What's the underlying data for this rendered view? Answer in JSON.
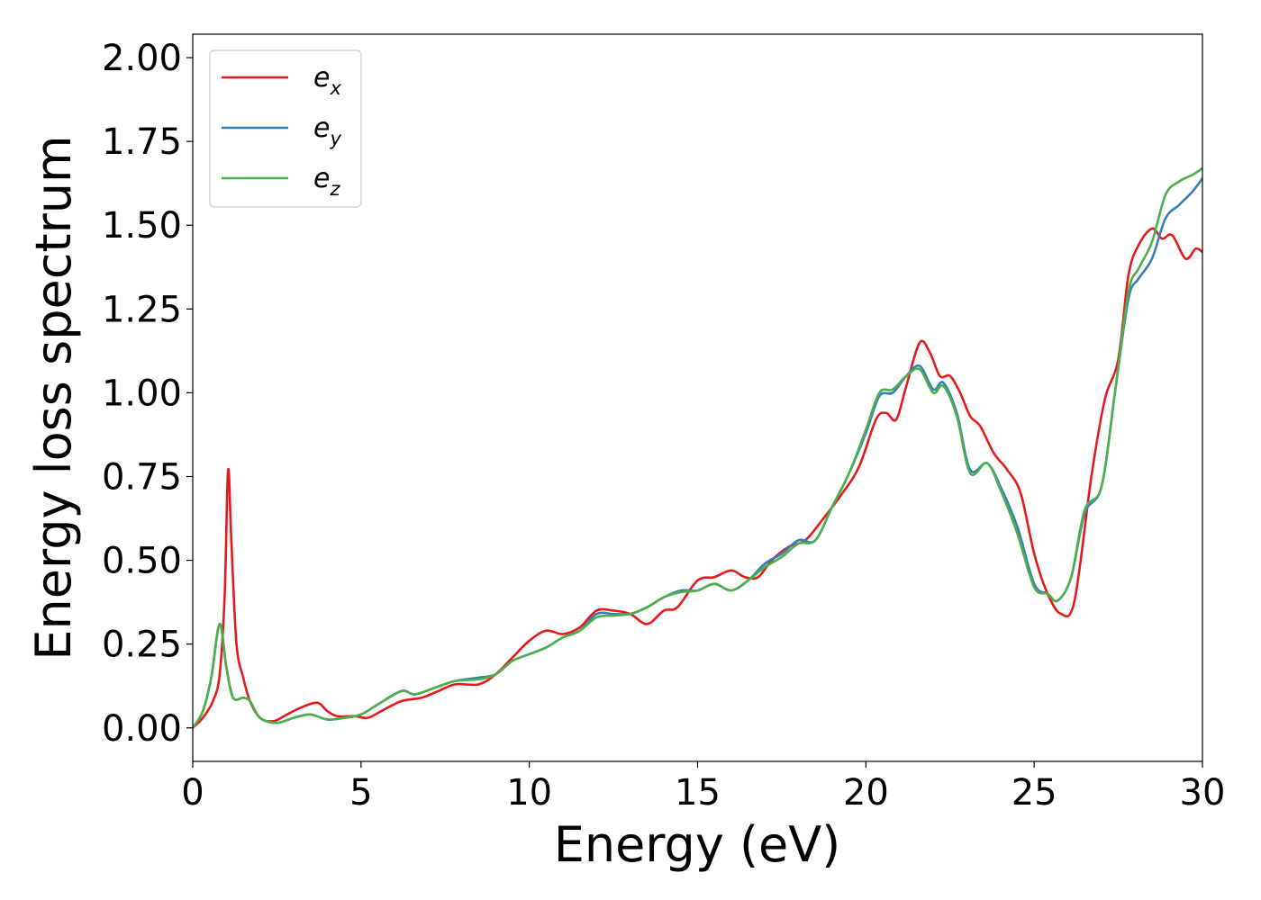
{
  "chart_data": {
    "type": "line",
    "title": "",
    "xlabel": "Energy (eV)",
    "ylabel": "Energy loss spectrum",
    "xlim": [
      0,
      30
    ],
    "ylim": [
      -0.1,
      2.07
    ],
    "xticks": [
      0,
      5,
      10,
      15,
      20,
      25,
      30
    ],
    "xtick_labels": [
      "0",
      "5",
      "10",
      "15",
      "20",
      "25",
      "30"
    ],
    "yticks": [
      0,
      0.25,
      0.5,
      0.75,
      1.0,
      1.25,
      1.5,
      1.75,
      2.0
    ],
    "ytick_labels": [
      "0.00",
      "0.25",
      "0.50",
      "0.75",
      "1.00",
      "1.25",
      "1.50",
      "1.75",
      "2.00"
    ],
    "grid": false,
    "legend_position": "top-left",
    "series": [
      {
        "name": "e_x",
        "legend_base": "e",
        "legend_sub": "x",
        "color": "#e41a1c",
        "points": [
          [
            0,
            0
          ],
          [
            0.3,
            0.03
          ],
          [
            0.6,
            0.08
          ],
          [
            0.8,
            0.16
          ],
          [
            0.95,
            0.4
          ],
          [
            1.05,
            0.77
          ],
          [
            1.15,
            0.55
          ],
          [
            1.3,
            0.25
          ],
          [
            1.5,
            0.15
          ],
          [
            1.7,
            0.08
          ],
          [
            2.0,
            0.03
          ],
          [
            2.4,
            0.02
          ],
          [
            2.8,
            0.04
          ],
          [
            3.2,
            0.06
          ],
          [
            3.7,
            0.075
          ],
          [
            4.0,
            0.05
          ],
          [
            4.3,
            0.035
          ],
          [
            4.8,
            0.035
          ],
          [
            5.2,
            0.03
          ],
          [
            5.6,
            0.05
          ],
          [
            6.2,
            0.08
          ],
          [
            6.8,
            0.09
          ],
          [
            7.3,
            0.11
          ],
          [
            7.8,
            0.13
          ],
          [
            8.5,
            0.13
          ],
          [
            9.0,
            0.16
          ],
          [
            9.5,
            0.21
          ],
          [
            10.0,
            0.26
          ],
          [
            10.5,
            0.29
          ],
          [
            11.0,
            0.28
          ],
          [
            11.5,
            0.3
          ],
          [
            12.0,
            0.35
          ],
          [
            12.5,
            0.35
          ],
          [
            13.0,
            0.34
          ],
          [
            13.5,
            0.31
          ],
          [
            14.0,
            0.35
          ],
          [
            14.4,
            0.36
          ],
          [
            15.0,
            0.44
          ],
          [
            15.5,
            0.45
          ],
          [
            16.0,
            0.47
          ],
          [
            16.4,
            0.45
          ],
          [
            16.8,
            0.45
          ],
          [
            17.2,
            0.5
          ],
          [
            17.7,
            0.54
          ],
          [
            18.2,
            0.56
          ],
          [
            18.7,
            0.62
          ],
          [
            19.3,
            0.7
          ],
          [
            19.8,
            0.78
          ],
          [
            20.3,
            0.92
          ],
          [
            20.6,
            0.94
          ],
          [
            20.9,
            0.92
          ],
          [
            21.2,
            1.02
          ],
          [
            21.6,
            1.15
          ],
          [
            21.9,
            1.12
          ],
          [
            22.2,
            1.05
          ],
          [
            22.5,
            1.05
          ],
          [
            22.8,
            1.0
          ],
          [
            23.1,
            0.93
          ],
          [
            23.4,
            0.9
          ],
          [
            23.8,
            0.82
          ],
          [
            24.2,
            0.77
          ],
          [
            24.6,
            0.7
          ],
          [
            25.0,
            0.52
          ],
          [
            25.4,
            0.4
          ],
          [
            25.8,
            0.34
          ],
          [
            26.2,
            0.38
          ],
          [
            26.7,
            0.75
          ],
          [
            27.1,
            0.98
          ],
          [
            27.5,
            1.1
          ],
          [
            27.8,
            1.35
          ],
          [
            28.1,
            1.44
          ],
          [
            28.5,
            1.49
          ],
          [
            28.8,
            1.46
          ],
          [
            29.1,
            1.47
          ],
          [
            29.5,
            1.4
          ],
          [
            29.8,
            1.43
          ],
          [
            30.0,
            1.42
          ]
        ]
      },
      {
        "name": "e_y",
        "legend_base": "e",
        "legend_sub": "y",
        "color": "#377eb8",
        "points": [
          [
            0,
            0
          ],
          [
            0.3,
            0.05
          ],
          [
            0.55,
            0.15
          ],
          [
            0.8,
            0.31
          ],
          [
            1.0,
            0.18
          ],
          [
            1.2,
            0.09
          ],
          [
            1.5,
            0.09
          ],
          [
            1.7,
            0.08
          ],
          [
            2.0,
            0.03
          ],
          [
            2.5,
            0.015
          ],
          [
            3.0,
            0.03
          ],
          [
            3.5,
            0.04
          ],
          [
            4.0,
            0.025
          ],
          [
            4.5,
            0.03
          ],
          [
            5.0,
            0.04
          ],
          [
            5.5,
            0.07
          ],
          [
            6.2,
            0.11
          ],
          [
            6.6,
            0.1
          ],
          [
            7.2,
            0.12
          ],
          [
            7.8,
            0.14
          ],
          [
            8.5,
            0.15
          ],
          [
            9.0,
            0.16
          ],
          [
            9.5,
            0.2
          ],
          [
            10.0,
            0.22
          ],
          [
            10.5,
            0.24
          ],
          [
            11.0,
            0.27
          ],
          [
            11.5,
            0.29
          ],
          [
            12.0,
            0.34
          ],
          [
            12.5,
            0.34
          ],
          [
            13.0,
            0.34
          ],
          [
            13.5,
            0.36
          ],
          [
            14.0,
            0.39
          ],
          [
            14.5,
            0.41
          ],
          [
            15.0,
            0.41
          ],
          [
            15.5,
            0.43
          ],
          [
            16.0,
            0.41
          ],
          [
            16.5,
            0.44
          ],
          [
            17.0,
            0.49
          ],
          [
            17.5,
            0.52
          ],
          [
            18.0,
            0.56
          ],
          [
            18.5,
            0.56
          ],
          [
            19.0,
            0.66
          ],
          [
            19.5,
            0.76
          ],
          [
            20.0,
            0.88
          ],
          [
            20.4,
            0.99
          ],
          [
            20.8,
            1.0
          ],
          [
            21.2,
            1.05
          ],
          [
            21.6,
            1.08
          ],
          [
            22.0,
            1.01
          ],
          [
            22.3,
            1.03
          ],
          [
            22.7,
            0.94
          ],
          [
            23.1,
            0.77
          ],
          [
            23.6,
            0.79
          ],
          [
            24.0,
            0.72
          ],
          [
            24.5,
            0.6
          ],
          [
            25.0,
            0.43
          ],
          [
            25.4,
            0.4
          ],
          [
            25.7,
            0.38
          ],
          [
            26.1,
            0.45
          ],
          [
            26.5,
            0.64
          ],
          [
            27.0,
            0.72
          ],
          [
            27.4,
            1.0
          ],
          [
            27.8,
            1.28
          ],
          [
            28.1,
            1.34
          ],
          [
            28.5,
            1.4
          ],
          [
            28.9,
            1.52
          ],
          [
            29.3,
            1.56
          ],
          [
            29.7,
            1.6
          ],
          [
            30.0,
            1.64
          ]
        ]
      },
      {
        "name": "e_z",
        "legend_base": "e",
        "legend_sub": "z",
        "color": "#4daf4a",
        "points": [
          [
            0,
            0
          ],
          [
            0.3,
            0.05
          ],
          [
            0.55,
            0.15
          ],
          [
            0.8,
            0.31
          ],
          [
            1.0,
            0.18
          ],
          [
            1.2,
            0.09
          ],
          [
            1.5,
            0.09
          ],
          [
            1.7,
            0.08
          ],
          [
            2.0,
            0.03
          ],
          [
            2.5,
            0.015
          ],
          [
            3.0,
            0.03
          ],
          [
            3.5,
            0.04
          ],
          [
            4.0,
            0.025
          ],
          [
            4.5,
            0.03
          ],
          [
            5.0,
            0.04
          ],
          [
            5.5,
            0.07
          ],
          [
            6.2,
            0.11
          ],
          [
            6.6,
            0.1
          ],
          [
            7.2,
            0.12
          ],
          [
            7.8,
            0.14
          ],
          [
            8.5,
            0.145
          ],
          [
            9.0,
            0.16
          ],
          [
            9.5,
            0.2
          ],
          [
            10.0,
            0.22
          ],
          [
            10.5,
            0.24
          ],
          [
            11.0,
            0.27
          ],
          [
            11.5,
            0.29
          ],
          [
            12.0,
            0.33
          ],
          [
            12.5,
            0.335
          ],
          [
            13.0,
            0.34
          ],
          [
            13.5,
            0.36
          ],
          [
            14.0,
            0.39
          ],
          [
            14.5,
            0.405
          ],
          [
            15.0,
            0.41
          ],
          [
            15.5,
            0.43
          ],
          [
            16.0,
            0.41
          ],
          [
            16.5,
            0.44
          ],
          [
            17.0,
            0.48
          ],
          [
            17.5,
            0.51
          ],
          [
            18.0,
            0.55
          ],
          [
            18.5,
            0.56
          ],
          [
            19.0,
            0.66
          ],
          [
            19.5,
            0.76
          ],
          [
            20.0,
            0.89
          ],
          [
            20.4,
            1.0
          ],
          [
            20.8,
            1.01
          ],
          [
            21.2,
            1.05
          ],
          [
            21.6,
            1.07
          ],
          [
            22.0,
            1.0
          ],
          [
            22.3,
            1.02
          ],
          [
            22.7,
            0.93
          ],
          [
            23.1,
            0.76
          ],
          [
            23.6,
            0.79
          ],
          [
            24.0,
            0.71
          ],
          [
            24.5,
            0.58
          ],
          [
            25.0,
            0.42
          ],
          [
            25.4,
            0.4
          ],
          [
            25.7,
            0.38
          ],
          [
            26.1,
            0.45
          ],
          [
            26.5,
            0.65
          ],
          [
            27.0,
            0.72
          ],
          [
            27.4,
            1.0
          ],
          [
            27.8,
            1.3
          ],
          [
            28.1,
            1.37
          ],
          [
            28.5,
            1.45
          ],
          [
            28.9,
            1.59
          ],
          [
            29.3,
            1.63
          ],
          [
            29.7,
            1.65
          ],
          [
            30.0,
            1.67
          ]
        ]
      }
    ]
  }
}
